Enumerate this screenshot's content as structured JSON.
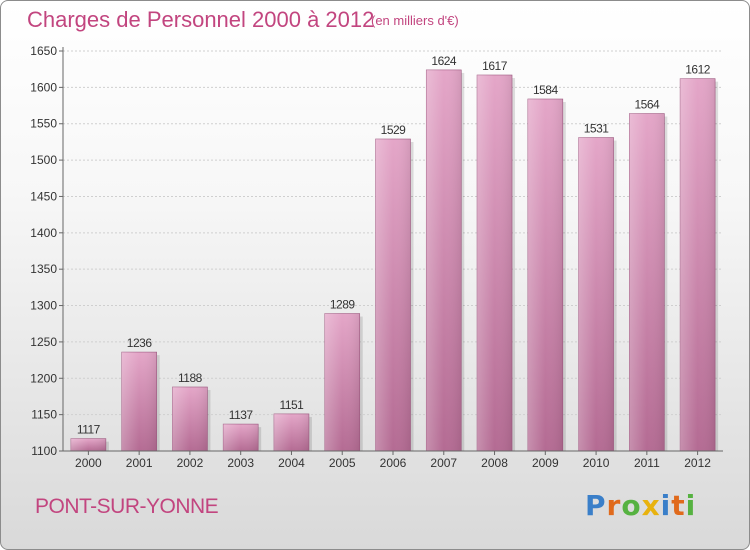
{
  "chart_data": {
    "type": "bar",
    "title": "Charges de Personnel 2000 à 2012",
    "subtitle": "(en milliers d'€)",
    "categories": [
      "2000",
      "2001",
      "2002",
      "2003",
      "2004",
      "2005",
      "2006",
      "2007",
      "2008",
      "2009",
      "2010",
      "2011",
      "2012"
    ],
    "values": [
      1117,
      1236,
      1188,
      1137,
      1151,
      1289,
      1529,
      1624,
      1617,
      1584,
      1531,
      1564,
      1612
    ],
    "ylim": [
      1100,
      1650
    ],
    "yticks": [
      1100,
      1150,
      1200,
      1250,
      1300,
      1350,
      1400,
      1450,
      1500,
      1550,
      1600,
      1650
    ],
    "grid": true,
    "bar_color": "#d98cb3",
    "bar_color_dark": "#b86a94"
  },
  "footer": {
    "commune": "PONT-SUR-YONNE"
  },
  "logo": {
    "letters": [
      {
        "char": "P",
        "color": "#3a7fc9"
      },
      {
        "char": "r",
        "color": "#e06a1c"
      },
      {
        "char": "o",
        "color": "#56b241"
      },
      {
        "char": "x",
        "color": "#e8b20e"
      },
      {
        "char": "i",
        "color": "#3a7fc9"
      },
      {
        "char": "t",
        "color": "#e06a1c"
      },
      {
        "char": "i",
        "color": "#56b241"
      }
    ]
  }
}
